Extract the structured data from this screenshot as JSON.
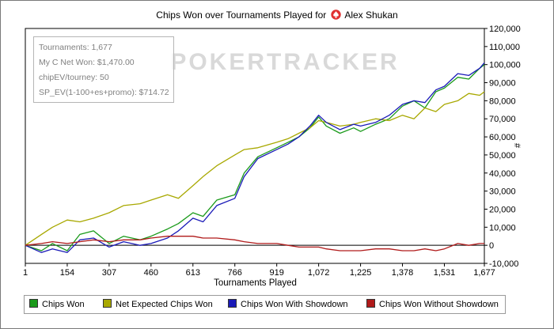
{
  "chart_data": {
    "type": "line",
    "title_prefix": "Chips Won over Tournaments Played for",
    "player": "Alex Shukan",
    "xlabel": "Tournaments Played",
    "ylabel": "#",
    "xlim": [
      1,
      1677
    ],
    "ylim": [
      -10000,
      120000
    ],
    "x_ticks": [
      1,
      154,
      307,
      460,
      613,
      766,
      919,
      1072,
      1225,
      1378,
      1531,
      1677
    ],
    "x_tick_labels": [
      "1",
      "154",
      "307",
      "460",
      "613",
      "766",
      "919",
      "1,072",
      "1,225",
      "1,378",
      "1,531",
      "1,677"
    ],
    "y_ticks": [
      -10000,
      0,
      10000,
      20000,
      30000,
      40000,
      50000,
      60000,
      70000,
      80000,
      90000,
      100000,
      110000,
      120000
    ],
    "y_tick_labels": [
      "-10,000",
      "0",
      "10,000",
      "20,000",
      "30,000",
      "40,000",
      "50,000",
      "60,000",
      "70,000",
      "80,000",
      "90,000",
      "100,000",
      "110,000",
      "120,000"
    ],
    "grid": false,
    "watermark": "POKERTRACKER",
    "legend_position": "bottom",
    "series": [
      {
        "name": "Chips Won",
        "color": "#1a9a1a",
        "x": [
          1,
          60,
          100,
          154,
          200,
          250,
          307,
          360,
          420,
          460,
          520,
          560,
          613,
          650,
          700,
          766,
          800,
          850,
          919,
          960,
          1000,
          1040,
          1072,
          1100,
          1150,
          1200,
          1225,
          1280,
          1330,
          1378,
          1420,
          1460,
          1500,
          1531,
          1580,
          1620,
          1660,
          1677
        ],
        "y": [
          0,
          -3000,
          1000,
          -3000,
          6000,
          8000,
          1000,
          5000,
          3000,
          5000,
          9000,
          12000,
          18000,
          16000,
          25000,
          28000,
          40000,
          49000,
          54000,
          57000,
          60000,
          65000,
          71000,
          66000,
          62000,
          65000,
          63000,
          67000,
          70000,
          77000,
          80000,
          76000,
          85000,
          87000,
          93000,
          92000,
          98000,
          100000
        ]
      },
      {
        "name": "Net Expected Chips Won",
        "color": "#a8a800",
        "x": [
          1,
          60,
          100,
          154,
          200,
          250,
          307,
          360,
          420,
          460,
          520,
          560,
          613,
          650,
          700,
          766,
          800,
          850,
          919,
          960,
          1000,
          1040,
          1072,
          1100,
          1150,
          1200,
          1225,
          1280,
          1330,
          1378,
          1420,
          1460,
          1500,
          1531,
          1580,
          1620,
          1660,
          1677
        ],
        "y": [
          0,
          6000,
          10000,
          14000,
          13000,
          15000,
          18000,
          22000,
          23000,
          25000,
          28000,
          26000,
          33000,
          38000,
          44000,
          50000,
          53000,
          54000,
          57000,
          59000,
          62000,
          65000,
          69000,
          68000,
          66000,
          67000,
          68000,
          70000,
          69000,
          72000,
          70000,
          76000,
          74000,
          78000,
          80000,
          84000,
          83000,
          85000
        ]
      },
      {
        "name": "Chips Won With Showdown",
        "color": "#1a1ab8",
        "x": [
          1,
          60,
          100,
          154,
          200,
          250,
          307,
          360,
          420,
          460,
          520,
          560,
          613,
          650,
          700,
          766,
          800,
          850,
          919,
          960,
          1000,
          1040,
          1072,
          1100,
          1150,
          1200,
          1225,
          1280,
          1330,
          1378,
          1420,
          1460,
          1500,
          1531,
          1580,
          1620,
          1660,
          1677
        ],
        "y": [
          0,
          -4000,
          -2000,
          -4000,
          3000,
          4000,
          -1000,
          2000,
          0,
          1000,
          4000,
          8000,
          15000,
          13000,
          22000,
          26000,
          38000,
          48000,
          53000,
          56000,
          60000,
          66000,
          72000,
          68000,
          64000,
          67000,
          66000,
          68000,
          72000,
          78000,
          80000,
          79000,
          86000,
          88000,
          95000,
          94000,
          98000,
          101000
        ]
      },
      {
        "name": "Chips Won Without Showdown",
        "color": "#b01a1a",
        "x": [
          1,
          60,
          100,
          154,
          200,
          250,
          307,
          360,
          420,
          460,
          520,
          560,
          613,
          650,
          700,
          766,
          800,
          850,
          919,
          960,
          1000,
          1040,
          1072,
          1100,
          1150,
          1200,
          1225,
          1280,
          1330,
          1378,
          1420,
          1460,
          1500,
          1531,
          1580,
          1620,
          1660,
          1677
        ],
        "y": [
          0,
          1000,
          2000,
          1000,
          2000,
          3000,
          2000,
          3000,
          3000,
          4000,
          5000,
          5000,
          5000,
          4000,
          4000,
          3000,
          2000,
          1000,
          1000,
          0,
          -1000,
          -1000,
          -1000,
          -2000,
          -3000,
          -3000,
          -3000,
          -2000,
          -2000,
          -3000,
          -3000,
          -2000,
          -3000,
          -2000,
          1000,
          0,
          1000,
          1000
        ]
      }
    ]
  },
  "info_box": {
    "tournaments": "Tournaments: 1,677",
    "net_won": "My C Net Won: $1,470.00",
    "chip_ev": "chipEV/tourney: 50",
    "sp_ev": "SP_EV(1-100+es+promo): $714.72"
  }
}
